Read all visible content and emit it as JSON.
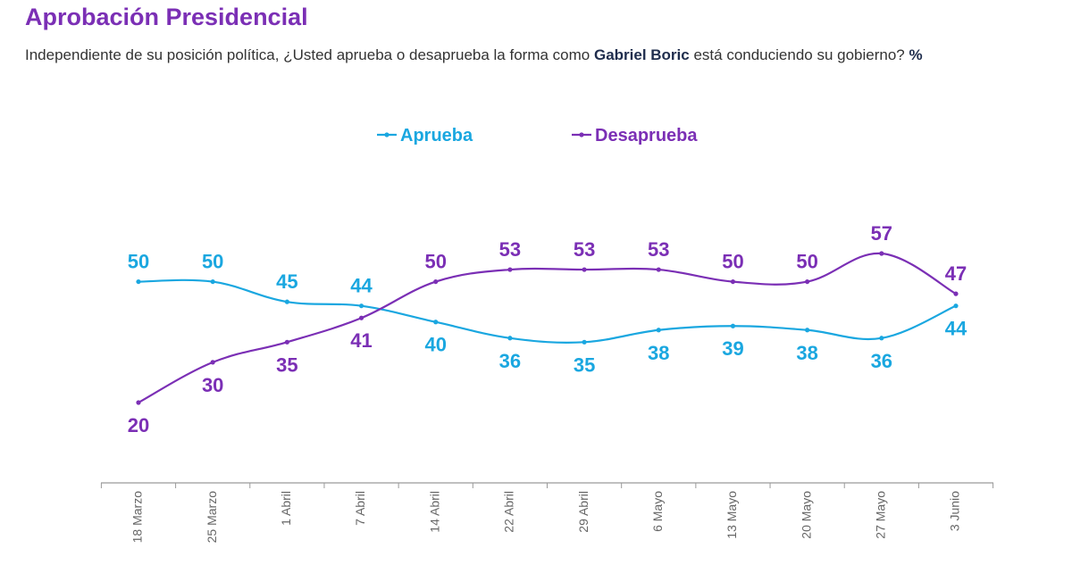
{
  "header": {
    "title": "Aprobación Presidencial",
    "subtitle_pre": "Independiente de su posición política, ¿Usted aprueba o desaprueba la forma como ",
    "subtitle_name": "Gabriel Boric",
    "subtitle_post": " está conduciendo su gobierno? ",
    "subtitle_unit": "%"
  },
  "chart_data": {
    "type": "line",
    "title": "Aprobación Presidencial",
    "categories": [
      "18 Marzo",
      "25 Marzo",
      "1 Abril",
      "7 Abril",
      "14 Abril",
      "22 Abril",
      "29 Abril",
      "6 Mayo",
      "13 Mayo",
      "20 Mayo",
      "27 Mayo",
      "3 Junio"
    ],
    "series": [
      {
        "name": "Aprueba",
        "color": "#1AA7E0",
        "values": [
          50,
          50,
          45,
          44,
          40,
          36,
          35,
          38,
          39,
          38,
          36,
          44
        ]
      },
      {
        "name": "Desaprueba",
        "color": "#7B2FB5",
        "values": [
          20,
          30,
          35,
          41,
          50,
          53,
          53,
          53,
          50,
          50,
          57,
          47
        ]
      }
    ],
    "legend": "top-center",
    "xlabel": "",
    "ylabel": "",
    "ylim": [
      20,
      57
    ],
    "grid": false
  }
}
